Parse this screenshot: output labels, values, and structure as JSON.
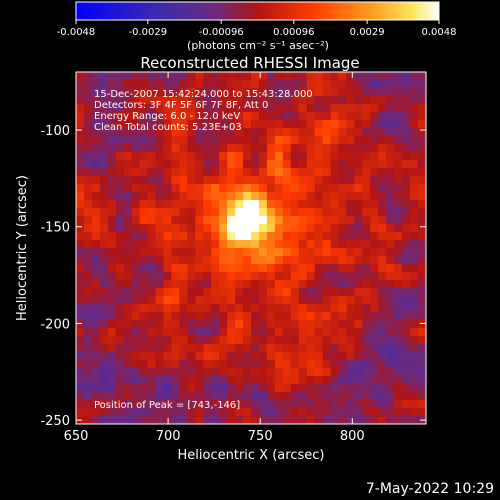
{
  "colorbar": {
    "ticks": [
      "-0.0048",
      "-0.0029",
      "-0.00096",
      "0.00096",
      "0.0029",
      "0.0048"
    ],
    "unit_label": "(photons cm⁻² s⁻¹ asec⁻²)",
    "range": [
      -0.0048,
      0.0048
    ]
  },
  "chart_data": {
    "type": "heatmap",
    "title": "Reconstructed RHESSI Image",
    "xlabel": "Heliocentric X (arcsec)",
    "ylabel": "Heliocentric Y (arcsec)",
    "xlim": [
      650,
      840
    ],
    "ylim": [
      -252,
      -70
    ],
    "xticks": [
      "650",
      "700",
      "750",
      "800"
    ],
    "yticks": [
      "-100",
      "-150",
      "-200",
      "-250"
    ],
    "annotations": [
      "15-Dec-2007 15:42:24.000 to 15:43:28.000",
      "Detectors: 3F 4F 5F 6F 7F 8F, Att 0",
      "Energy Range: 6.0 - 12.0 keV",
      "Clean     Total counts: 5.23E+03"
    ],
    "peak_label": "Position of Peak = [743,-146]",
    "peak": [
      743,
      -146
    ],
    "colormap": [
      "#0000ff",
      "#3a1a9a",
      "#4a2a7a",
      "#8a1010",
      "#d02a00",
      "#ff7a10",
      "#ffd84a",
      "#ffffff"
    ]
  },
  "footer": {
    "date_label": "7-May-2022 10:29"
  }
}
